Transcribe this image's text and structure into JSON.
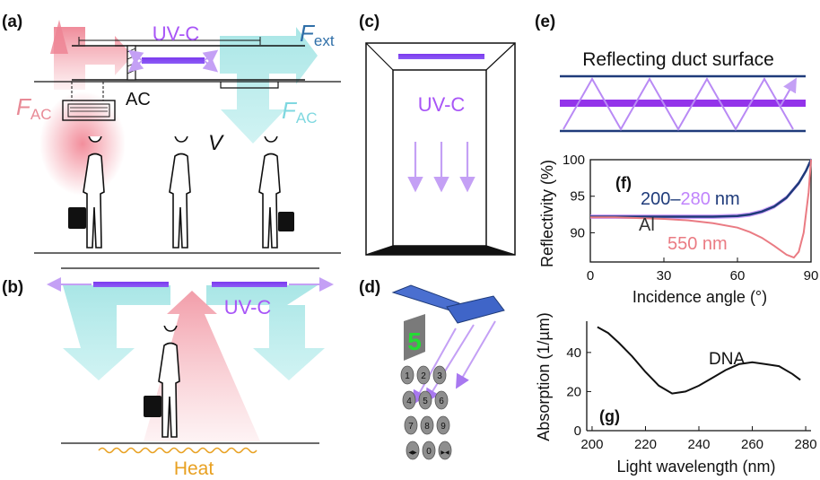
{
  "panel_labels": {
    "a": "(a)",
    "b": "(b)",
    "c": "(c)",
    "d": "(d)",
    "e": "(e)",
    "f": "(f)",
    "g": "(g)"
  },
  "panel_a": {
    "uvc": "UV-C",
    "f_ext_main": "F",
    "f_ext_sub": "ext",
    "f_ac_left_main": "F",
    "f_ac_left_sub": "AC",
    "ac": "AC",
    "f_ac_right_main": "F",
    "f_ac_right_sub": "AC",
    "v": "V"
  },
  "panel_b": {
    "uvc": "UV-C",
    "heat": "Heat"
  },
  "panel_c": {
    "uvc": "UV-C"
  },
  "panel_d": {
    "display_digit": "5",
    "keys": [
      "1",
      "2",
      "3",
      "4",
      "5",
      "6",
      "7",
      "8",
      "9",
      "◀▶",
      "0",
      "▶◀"
    ]
  },
  "panel_e": {
    "title": "Reflecting duct surface"
  },
  "colors": {
    "uv": "#a855f7",
    "uv_light": "#c4a0f5",
    "heat": "#e8a020",
    "warm": "#f08090",
    "cool": "#8fdcdc",
    "navy": "#1f3b7a"
  },
  "chart_data": [
    {
      "type": "line",
      "panel": "f",
      "xlabel": "Incidence angle (°)",
      "ylabel": "Reflectivity (%)",
      "xlim": [
        0,
        90
      ],
      "ylim": [
        86,
        100
      ],
      "xticks": [
        0,
        30,
        60,
        90
      ],
      "yticks": [
        90,
        95,
        100
      ],
      "annotations": {
        "material": "Al",
        "range_start": "200",
        "range_dash": "–",
        "range_end": "280",
        "range_unit": "nm",
        "red_label": "550 nm"
      },
      "series": [
        {
          "name": "200–280 nm",
          "x": [
            0,
            10,
            20,
            30,
            40,
            50,
            60,
            65,
            70,
            75,
            80,
            85,
            88,
            90
          ],
          "y": [
            92.2,
            92.2,
            92.2,
            92.2,
            92.2,
            92.2,
            92.3,
            92.5,
            92.9,
            93.6,
            94.8,
            96.8,
            98.5,
            100
          ]
        },
        {
          "name": "550 nm",
          "x": [
            0,
            10,
            20,
            30,
            40,
            50,
            60,
            65,
            70,
            75,
            80,
            83,
            85,
            87,
            89,
            90
          ],
          "y": [
            92.1,
            92.1,
            92.0,
            91.9,
            91.7,
            91.3,
            90.7,
            90.1,
            89.3,
            88.2,
            87.0,
            86.6,
            87.4,
            90.0,
            95.5,
            100
          ]
        }
      ]
    },
    {
      "type": "line",
      "panel": "g",
      "xlabel": "Light wavelength (nm)",
      "ylabel": "Absorption (1/µm)",
      "xlim": [
        198,
        282
      ],
      "ylim": [
        0,
        56
      ],
      "xticks": [
        200,
        220,
        240,
        260,
        280
      ],
      "yticks": [
        0,
        20,
        40
      ],
      "annotations": {
        "series_label": "DNA"
      },
      "series": [
        {
          "name": "DNA",
          "x": [
            202,
            206,
            210,
            215,
            220,
            225,
            230,
            235,
            240,
            245,
            250,
            255,
            260,
            265,
            270,
            275,
            278
          ],
          "y": [
            53,
            50,
            45,
            38,
            30,
            23,
            19,
            20,
            23,
            27,
            31,
            34,
            35,
            34,
            33,
            29,
            26
          ]
        }
      ]
    }
  ]
}
